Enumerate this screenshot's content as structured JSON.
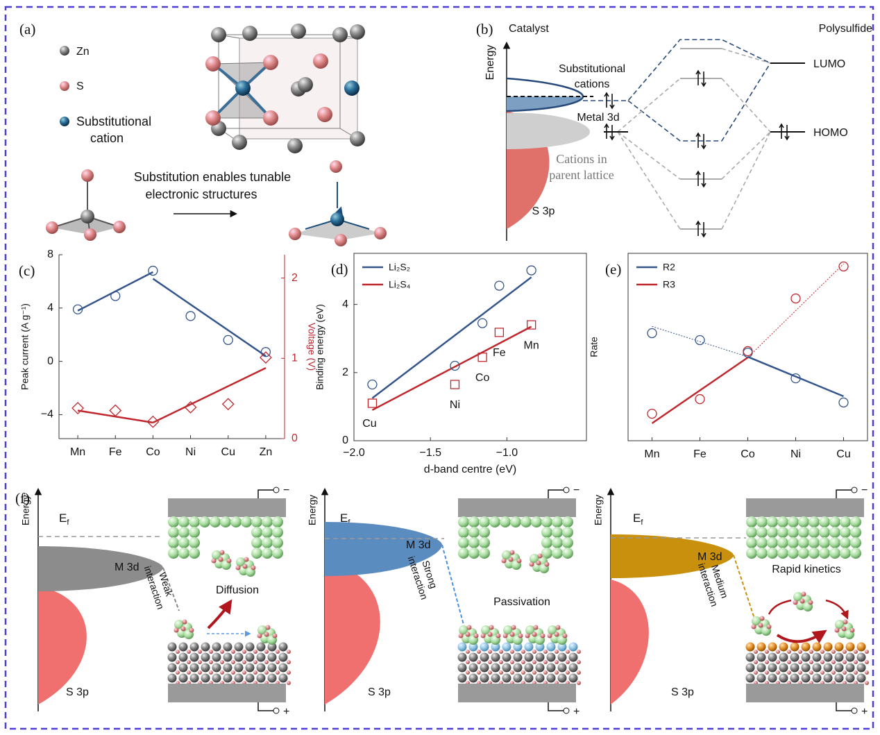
{
  "panels": {
    "a": {
      "label": "(a)",
      "legend": [
        "Zn",
        "S"
      ],
      "cation": [
        "Substitutional",
        "cation"
      ],
      "caption": [
        "Substitution enables tunable",
        "electronic structures"
      ]
    },
    "b": {
      "label": "(b)",
      "catalyst": "Catalyst",
      "polysulfide": "Polysulfide",
      "energy": "Energy",
      "substitutional": [
        "Substitutional",
        "cations"
      ],
      "metal": "Metal 3d",
      "parent": [
        "Cations in",
        "parent lattice"
      ],
      "s3p": "S 3p",
      "lumo": "LUMO",
      "homo": "HOMO"
    },
    "f": {
      "label": "(f)",
      "minus": "−",
      "plus": "+",
      "diagrams": [
        {
          "energy": "Energy",
          "ef": [
            "E",
            "f"
          ],
          "m3d": "M 3d",
          "s3p": "S 3p",
          "interaction": [
            "Weak",
            "interaction"
          ],
          "result": "Diffusion"
        },
        {
          "energy": "Energy",
          "ef": [
            "E",
            "f"
          ],
          "m3d": "M 3d",
          "s3p": "S 3p",
          "interaction": [
            "Strong",
            "interaction"
          ],
          "result": "Passivation"
        },
        {
          "energy": "Energy",
          "ef": [
            "E",
            "f"
          ],
          "m3d": "M 3d",
          "s3p": "S 3p",
          "interaction": [
            "Medium",
            "interaction"
          ],
          "result": "Rapid kinetics"
        }
      ]
    }
  },
  "chart_data": [
    {
      "type": "scatter",
      "label": "(c)",
      "frame": "open",
      "categories": [
        "Mn",
        "Fe",
        "Co",
        "Ni",
        "Cu",
        "Zn"
      ],
      "ylabel": "Peak current (A g⁻¹)",
      "y2label": "Voltage (V)",
      "ylim": [
        -5.8,
        8
      ],
      "yticks": [
        {
          "value": -4,
          "label": "−4"
        },
        0,
        4,
        8
      ],
      "y2lim": [
        0,
        2.29
      ],
      "y2ticks": [
        0,
        1,
        2
      ],
      "series": [
        {
          "color": "#34558b",
          "marker": "circle",
          "values": [
            3.9,
            4.9,
            6.8,
            3.4,
            1.6,
            0.7
          ]
        },
        {
          "color": "#c0272d",
          "marker": "diamond",
          "axis": "y2",
          "values": [
            0.38,
            0.35,
            0.21,
            0.39,
            0.43,
            1.01
          ]
        }
      ],
      "fits": [
        {
          "series": 0,
          "x": [
            0,
            2
          ],
          "values": [
            3.8,
            6.7
          ]
        },
        {
          "series": 0,
          "x": [
            2,
            5
          ],
          "values": [
            6.2,
            0.4
          ]
        },
        {
          "series": 1,
          "x": [
            0,
            2
          ],
          "values": [
            0.35,
            0.2
          ]
        },
        {
          "series": 1,
          "x": [
            2,
            5
          ],
          "values": [
            0.2,
            0.88
          ]
        }
      ]
    },
    {
      "type": "scatter",
      "label": "(d)",
      "frame": "box",
      "legend": "top-left",
      "xlabel": "d-band centre (eV)",
      "ylabel": "Binding energy (eV)",
      "xlim": [
        -2.0,
        -0.48
      ],
      "xticks": [
        {
          "value": -2,
          "label": "−2.0"
        },
        {
          "value": -1.5,
          "label": "−1.5"
        },
        {
          "value": -1,
          "label": "−1.0"
        }
      ],
      "ylim": [
        0,
        5.5
      ],
      "yticks": [
        0,
        2,
        4
      ],
      "x": [
        -1.88,
        -1.34,
        -1.16,
        -1.05,
        -0.84
      ],
      "point_labels": [
        "Cu",
        "Ni",
        "Co",
        "Fe",
        "Mn"
      ],
      "series": [
        {
          "name": "Li₂S₂",
          "color": "#34558b",
          "marker": "circle",
          "values": [
            1.65,
            2.2,
            3.45,
            4.55,
            5.0
          ]
        },
        {
          "name": "Li₂S₄",
          "color": "#c0272d",
          "marker": "square",
          "values": [
            1.1,
            1.65,
            2.45,
            3.18,
            3.4
          ]
        }
      ],
      "fits": [
        {
          "series": 0,
          "x": [
            -1.88,
            -0.84
          ],
          "values": [
            1.25,
            4.8
          ]
        },
        {
          "series": 1,
          "x": [
            -1.88,
            -0.84
          ],
          "values": [
            0.9,
            3.35
          ]
        }
      ]
    },
    {
      "type": "scatter",
      "label": "(e)",
      "frame": "box",
      "legend": "top-left",
      "ylabel": "Rate",
      "categories": [
        "Mn",
        "Fe",
        "Co",
        "Ni",
        "Cu"
      ],
      "ylim": [
        0,
        10
      ],
      "series": [
        {
          "name": "R2",
          "color": "#34558b",
          "marker": "circle",
          "values": [
            5.74,
            5.37,
            4.7,
            3.33,
            2.04
          ]
        },
        {
          "name": "R3",
          "color": "#c0272d",
          "marker": "circle",
          "values": [
            1.44,
            2.22,
            4.78,
            7.59,
            9.3
          ]
        }
      ],
      "fits": [
        {
          "series": 0,
          "x": [
            0,
            2
          ],
          "values": [
            6.1,
            4.48
          ],
          "style": "dotted"
        },
        {
          "series": 0,
          "x": [
            2,
            4
          ],
          "values": [
            4.48,
            2.37
          ]
        },
        {
          "series": 1,
          "x": [
            0,
            2
          ],
          "values": [
            0.93,
            4.44
          ]
        },
        {
          "series": 1,
          "x": [
            2,
            4
          ],
          "values": [
            4.44,
            9.44
          ],
          "style": "dotted"
        }
      ]
    }
  ]
}
